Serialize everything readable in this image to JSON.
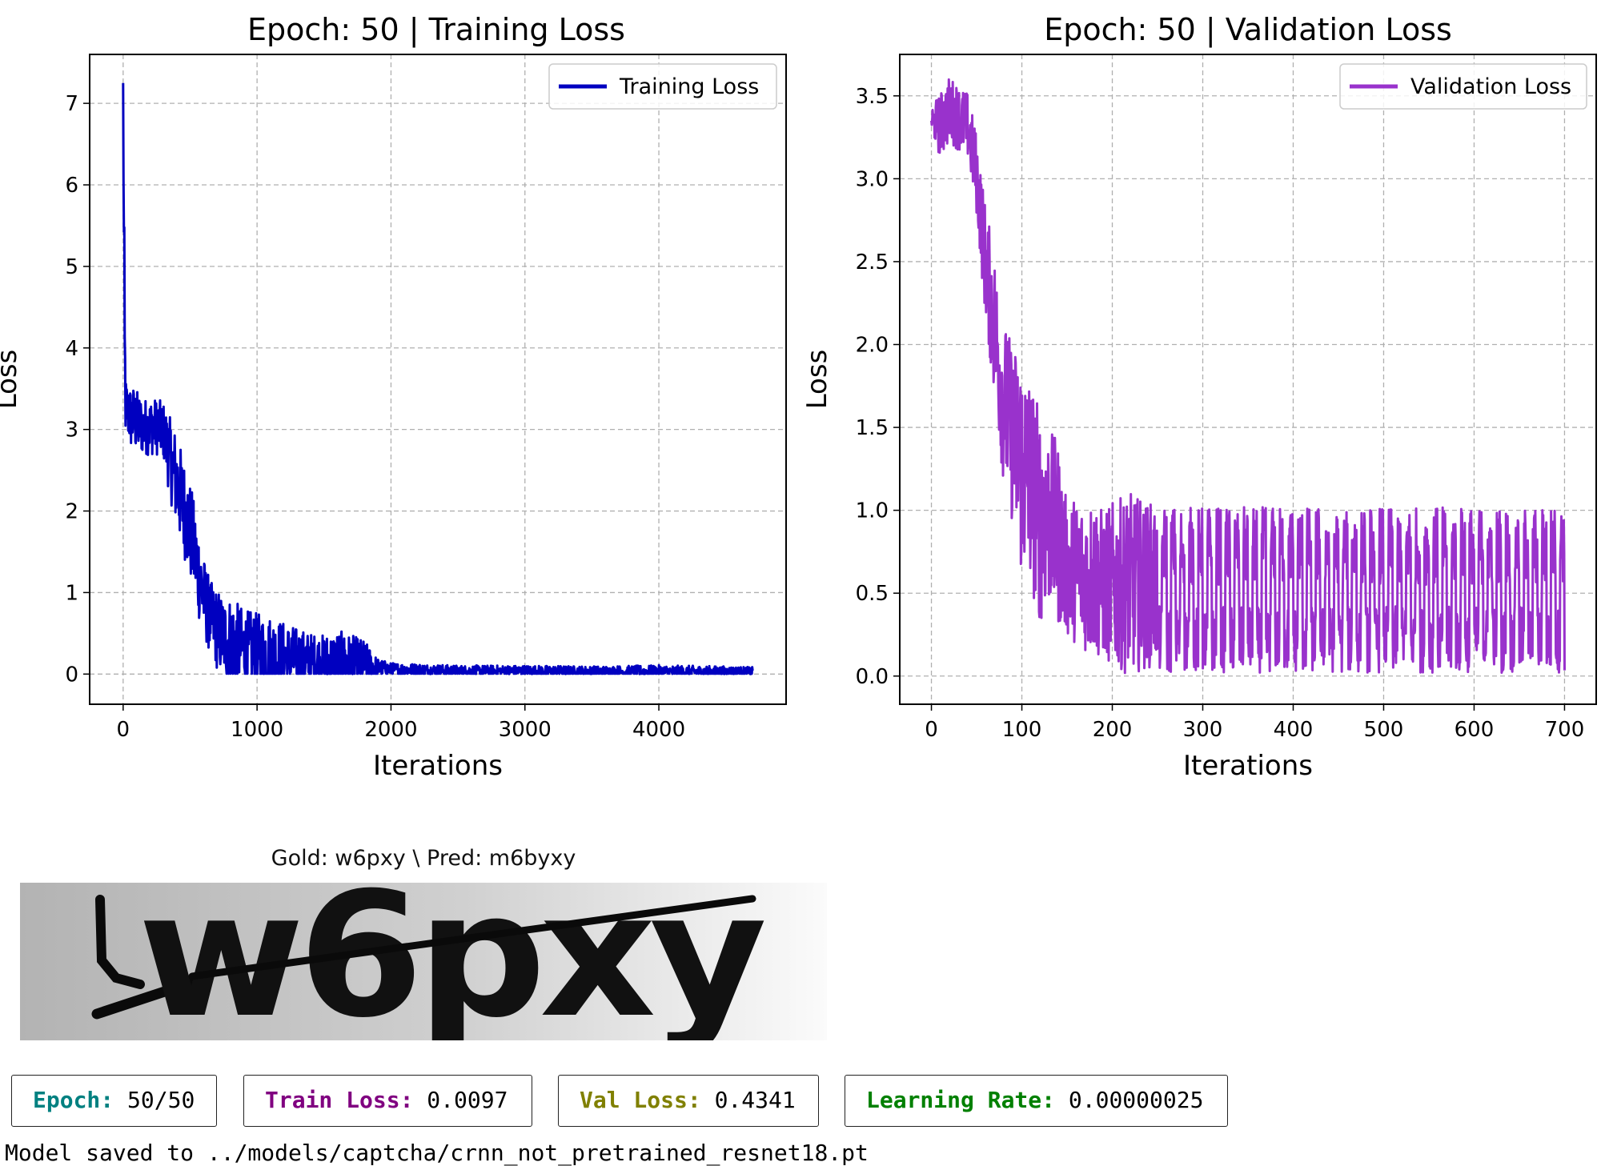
{
  "chart_data": [
    {
      "type": "line",
      "title": "Epoch: 50 | Training Loss",
      "xlabel": "Iterations",
      "ylabel": "Loss",
      "xlim": [
        -250,
        4950
      ],
      "ylim": [
        -0.37,
        7.6
      ],
      "xticks": [
        0,
        1000,
        2000,
        3000,
        4000
      ],
      "yticks": [
        0,
        1,
        2,
        3,
        4,
        5,
        6,
        7
      ],
      "grid": true,
      "legend": "top-right",
      "series": [
        {
          "name": "Training Loss",
          "color": "#0000c0",
          "x": [
            0,
            10,
            20,
            40,
            60,
            80,
            100,
            150,
            200,
            250,
            300,
            350,
            400,
            450,
            500,
            550,
            600,
            650,
            700,
            750,
            800,
            900,
            1000,
            1100,
            1200,
            1300,
            1400,
            1500,
            1600,
            1700,
            1800,
            1900,
            2000,
            2200,
            2500,
            3000,
            3500,
            4000,
            4500,
            4700
          ],
          "y": [
            7.25,
            3.6,
            3.3,
            3.15,
            3.1,
            3.1,
            3.05,
            3.0,
            3.0,
            3.0,
            2.95,
            2.6,
            2.3,
            2.0,
            1.7,
            1.3,
            0.9,
            0.65,
            0.5,
            0.4,
            0.35,
            0.25,
            0.2,
            0.18,
            0.15,
            0.13,
            0.12,
            0.1,
            0.1,
            0.1,
            0.09,
            0.06,
            0.05,
            0.04,
            0.03,
            0.03,
            0.02,
            0.02,
            0.02,
            0.02
          ],
          "envelope": [
            0,
            1.5,
            0.3,
            0.35,
            0.4,
            0.4,
            0.4,
            0.35,
            0.35,
            0.35,
            0.35,
            0.5,
            0.6,
            0.6,
            0.6,
            0.6,
            0.5,
            0.45,
            0.5,
            0.5,
            0.55,
            0.5,
            0.5,
            0.5,
            0.45,
            0.4,
            0.35,
            0.35,
            0.4,
            0.35,
            0.3,
            0.12,
            0.08,
            0.08,
            0.07,
            0.07,
            0.07,
            0.08,
            0.07,
            0.06
          ]
        }
      ]
    },
    {
      "type": "line",
      "title": "Epoch: 50 | Validation Loss",
      "xlabel": "Iterations",
      "ylabel": "Loss",
      "xlim": [
        -35,
        735
      ],
      "ylim": [
        -0.17,
        3.75
      ],
      "xticks": [
        0,
        100,
        200,
        300,
        400,
        500,
        600,
        700
      ],
      "yticks": [
        0.0,
        0.5,
        1.0,
        1.5,
        2.0,
        2.5,
        3.0,
        3.5
      ],
      "grid": true,
      "legend": "top-right",
      "series": [
        {
          "name": "Validation Loss",
          "color": "#9932cc",
          "x": [
            0,
            10,
            20,
            30,
            40,
            50,
            60,
            70,
            80,
            90,
            100,
            110,
            120,
            130,
            140,
            150,
            160,
            170,
            180,
            190,
            200,
            220,
            240,
            260,
            280,
            300,
            350,
            400,
            500,
            600,
            700
          ],
          "y": [
            3.35,
            3.3,
            3.4,
            3.35,
            3.3,
            3.0,
            2.45,
            2.05,
            1.6,
            1.4,
            1.2,
            1.1,
            0.9,
            0.9,
            0.8,
            0.6,
            0.6,
            0.55,
            0.55,
            0.5,
            0.5,
            0.5,
            0.5,
            0.5,
            0.5,
            0.5,
            0.5,
            0.5,
            0.5,
            0.5,
            0.5
          ],
          "envelope": [
            0.08,
            0.2,
            0.2,
            0.2,
            0.2,
            0.25,
            0.35,
            0.45,
            0.5,
            0.55,
            0.7,
            0.65,
            0.65,
            0.55,
            0.55,
            0.4,
            0.45,
            0.45,
            0.5,
            0.45,
            0.5,
            0.55,
            0.5,
            0.5,
            0.52,
            0.52,
            0.52,
            0.52,
            0.52,
            0.52,
            0.52
          ]
        }
      ]
    }
  ],
  "captcha": {
    "caption": "Gold: w6pxy \\ Pred: m6byxy",
    "text": "w6pxy"
  },
  "stats": {
    "epoch": {
      "key": "Epoch:",
      "value": " 50/50",
      "color": "#008080"
    },
    "train_loss": {
      "key": "Train Loss:",
      "value": " 0.0097",
      "color": "#800080"
    },
    "val_loss": {
      "key": "Val Loss:",
      "value": " 0.4341",
      "color": "#808000"
    },
    "lr": {
      "key": "Learning Rate:",
      "value": " 0.00000025",
      "color": "#008000"
    }
  },
  "log": {
    "message": "Model saved to ../models/captcha/crnn_not_pretrained_resnet18.pt"
  }
}
